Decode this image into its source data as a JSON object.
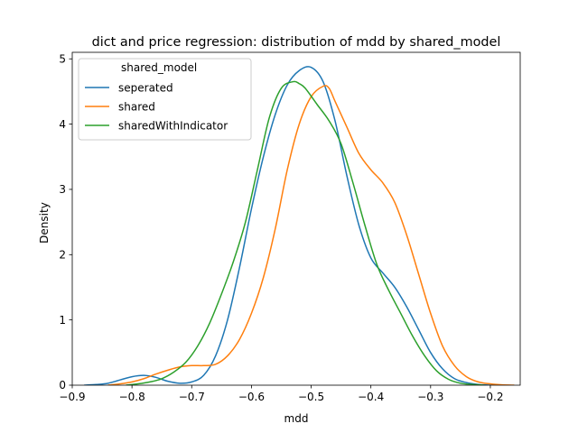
{
  "chart_data": {
    "type": "line",
    "title": "dict and price regression: distribution of mdd by shared_model",
    "xlabel": "mdd",
    "ylabel": "Density",
    "xlim": [
      -0.9,
      -0.15
    ],
    "ylim": [
      0,
      5.1
    ],
    "xticks": [
      -0.9,
      -0.8,
      -0.7,
      -0.6,
      -0.5,
      -0.4,
      -0.3,
      -0.2
    ],
    "xtick_labels": [
      "−0.9",
      "−0.8",
      "−0.7",
      "−0.6",
      "−0.5",
      "−0.4",
      "−0.3",
      "−0.2"
    ],
    "yticks": [
      0,
      1,
      2,
      3,
      4,
      5
    ],
    "ytick_labels": [
      "0",
      "1",
      "2",
      "3",
      "4",
      "5"
    ],
    "grid": false,
    "legend": {
      "title": "shared_model",
      "placement": "top-left"
    },
    "series": [
      {
        "name": "seperated",
        "color": "#1f77b4",
        "x": [
          -0.88,
          -0.86,
          -0.84,
          -0.82,
          -0.8,
          -0.78,
          -0.76,
          -0.74,
          -0.72,
          -0.7,
          -0.68,
          -0.66,
          -0.64,
          -0.62,
          -0.6,
          -0.58,
          -0.56,
          -0.54,
          -0.52,
          -0.5,
          -0.48,
          -0.46,
          -0.44,
          -0.42,
          -0.4,
          -0.38,
          -0.36,
          -0.34,
          -0.32,
          -0.3,
          -0.28,
          -0.26,
          -0.24,
          -0.22,
          -0.2,
          -0.19
        ],
        "y": [
          0.0,
          0.01,
          0.03,
          0.08,
          0.13,
          0.15,
          0.12,
          0.06,
          0.03,
          0.05,
          0.15,
          0.45,
          1.0,
          1.8,
          2.7,
          3.5,
          4.15,
          4.6,
          4.82,
          4.87,
          4.65,
          4.05,
          3.2,
          2.45,
          1.95,
          1.72,
          1.5,
          1.2,
          0.85,
          0.5,
          0.25,
          0.1,
          0.04,
          0.01,
          0.0,
          0.0
        ]
      },
      {
        "name": "shared",
        "color": "#ff7f0e",
        "x": [
          -0.84,
          -0.82,
          -0.8,
          -0.78,
          -0.76,
          -0.74,
          -0.72,
          -0.7,
          -0.68,
          -0.66,
          -0.64,
          -0.62,
          -0.6,
          -0.58,
          -0.56,
          -0.54,
          -0.52,
          -0.5,
          -0.48,
          -0.47,
          -0.46,
          -0.44,
          -0.42,
          -0.4,
          -0.38,
          -0.36,
          -0.34,
          -0.32,
          -0.3,
          -0.28,
          -0.26,
          -0.24,
          -0.22,
          -0.2,
          -0.18,
          -0.16
        ],
        "y": [
          0.0,
          0.02,
          0.05,
          0.1,
          0.17,
          0.23,
          0.28,
          0.3,
          0.3,
          0.32,
          0.45,
          0.7,
          1.1,
          1.65,
          2.4,
          3.3,
          4.0,
          4.42,
          4.58,
          4.55,
          4.35,
          3.95,
          3.55,
          3.3,
          3.1,
          2.8,
          2.3,
          1.7,
          1.1,
          0.6,
          0.3,
          0.13,
          0.05,
          0.02,
          0.005,
          0.0
        ]
      },
      {
        "name": "sharedWithIndicator",
        "color": "#2ca02c",
        "x": [
          -0.81,
          -0.79,
          -0.77,
          -0.75,
          -0.73,
          -0.71,
          -0.69,
          -0.67,
          -0.65,
          -0.63,
          -0.61,
          -0.59,
          -0.57,
          -0.55,
          -0.53,
          -0.52,
          -0.51,
          -0.49,
          -0.47,
          -0.45,
          -0.43,
          -0.41,
          -0.39,
          -0.37,
          -0.35,
          -0.33,
          -0.31,
          -0.29,
          -0.27,
          -0.25,
          -0.23,
          -0.21
        ],
        "y": [
          0.0,
          0.02,
          0.05,
          0.1,
          0.2,
          0.35,
          0.6,
          0.95,
          1.4,
          1.9,
          2.5,
          3.3,
          4.1,
          4.55,
          4.65,
          4.62,
          4.55,
          4.3,
          4.05,
          3.7,
          3.1,
          2.45,
          1.85,
          1.45,
          1.1,
          0.75,
          0.45,
          0.22,
          0.09,
          0.03,
          0.01,
          0.0
        ]
      }
    ]
  }
}
